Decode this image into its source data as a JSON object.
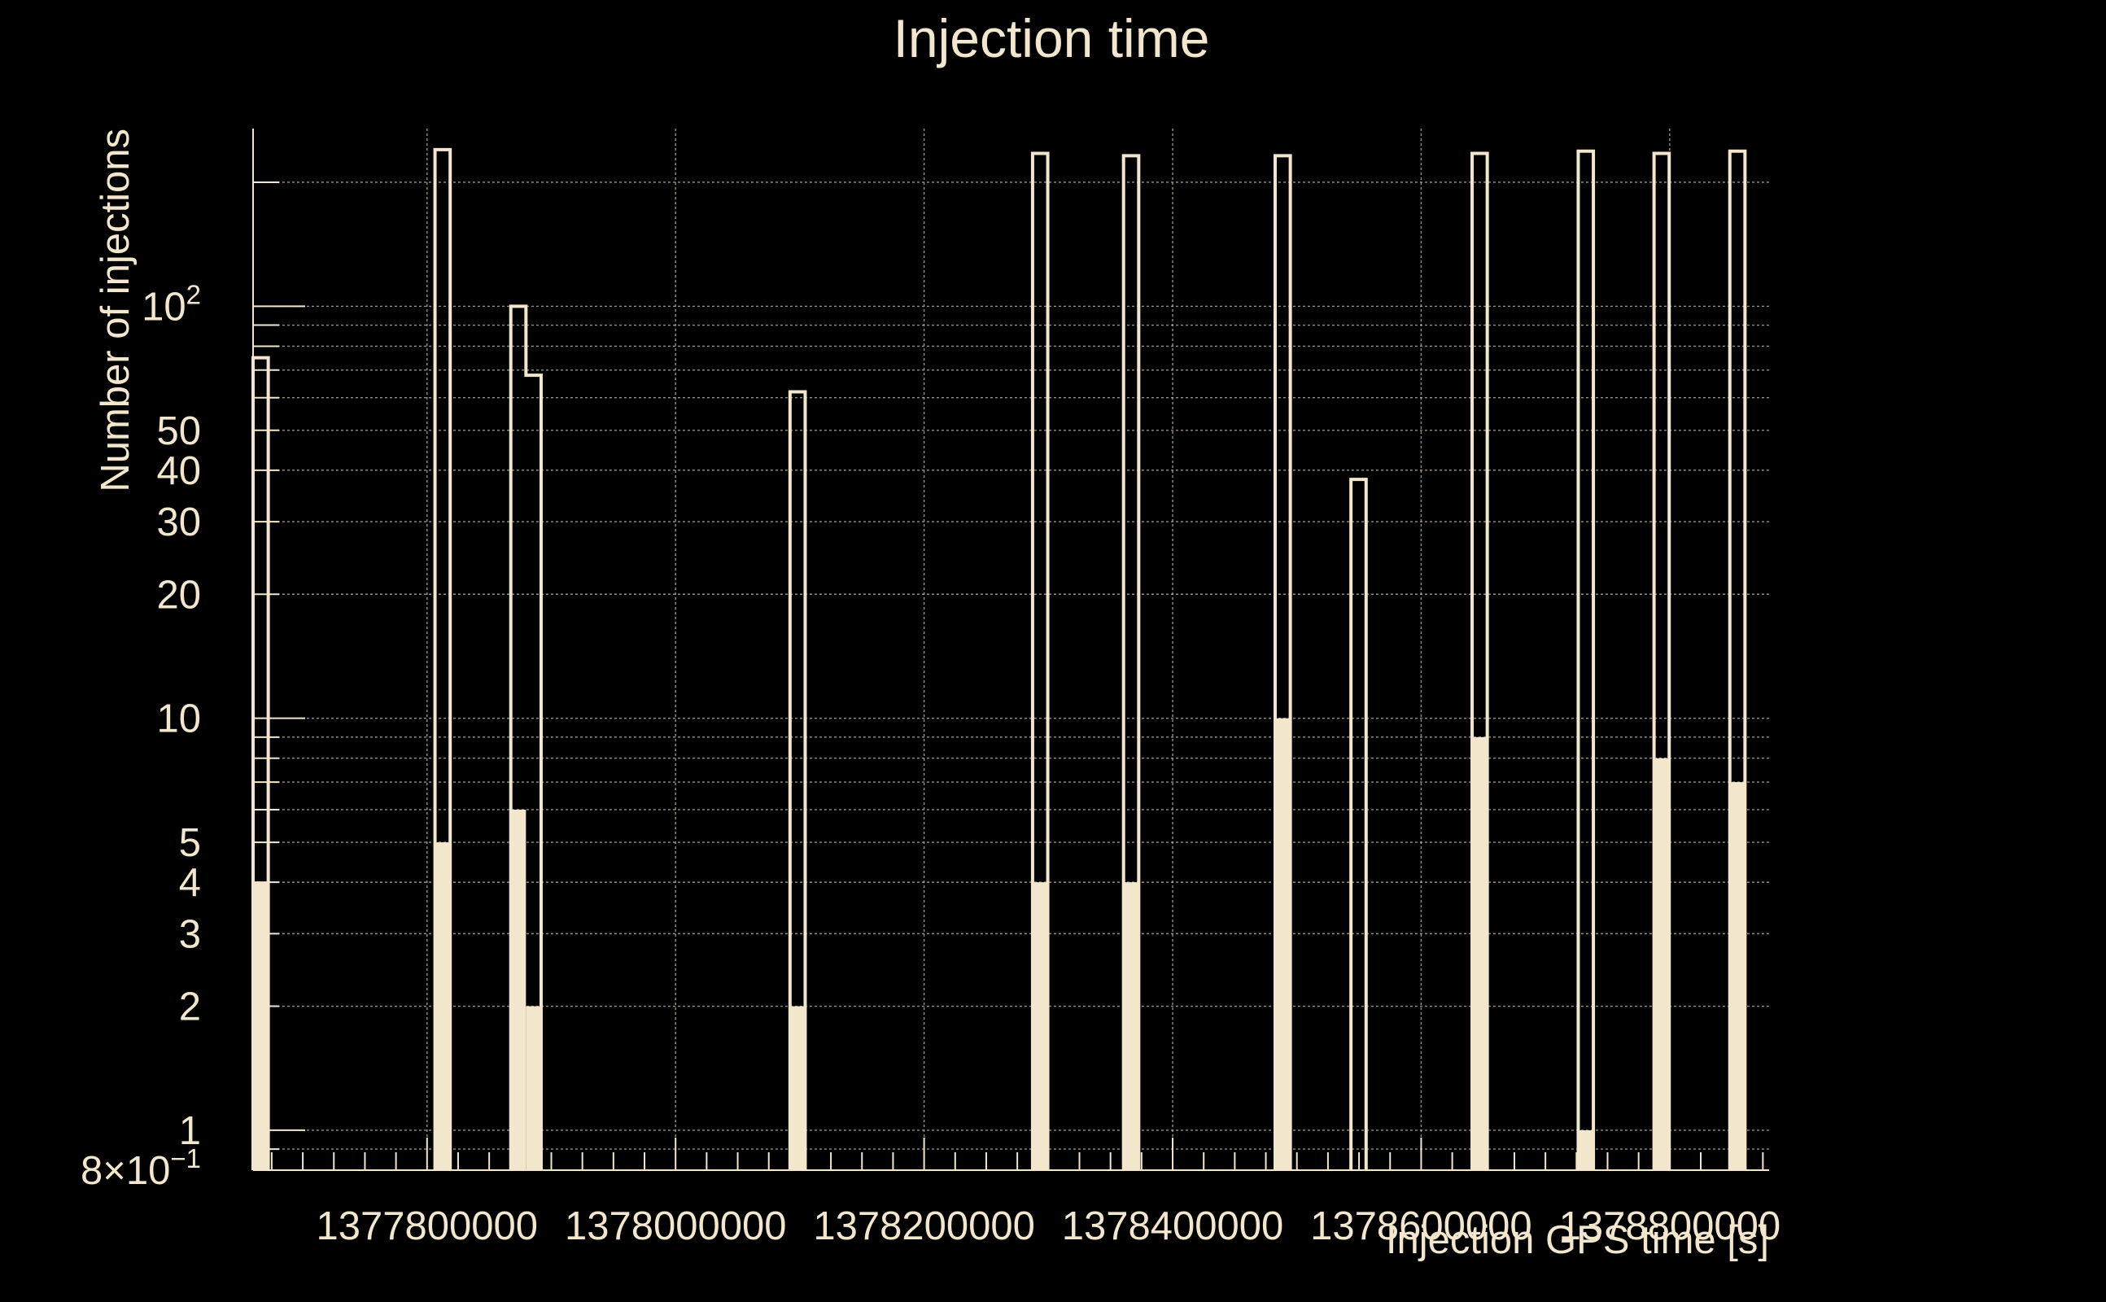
{
  "chart_data": {
    "type": "bar",
    "title": "Injection time",
    "xlabel": "Injection GPS time [s]",
    "ylabel": "Number of injections",
    "y_scale": "log",
    "ylim": [
      0.8,
      270
    ],
    "xlim": [
      1377660000,
      1378880000
    ],
    "grid": true,
    "x_tick_labels": [
      "1377800000",
      "1378000000",
      "1378200000",
      "1378400000",
      "1378600000",
      "1378800000"
    ],
    "x_ticks": [
      1377800000,
      1378000000,
      1378200000,
      1378400000,
      1378600000,
      1378800000
    ],
    "y_tick_labels": [
      {
        "value": 100,
        "base": "10",
        "exp": "2"
      },
      {
        "value": 50,
        "text": "50"
      },
      {
        "value": 40,
        "text": "40"
      },
      {
        "value": 30,
        "text": "30"
      },
      {
        "value": 20,
        "text": "20"
      },
      {
        "value": 10,
        "text": "10"
      },
      {
        "value": 5,
        "text": "5"
      },
      {
        "value": 4,
        "text": "4"
      },
      {
        "value": 3,
        "text": "3"
      },
      {
        "value": 2,
        "text": "2"
      },
      {
        "value": 1,
        "text": "1"
      },
      {
        "value": 0.8,
        "base": "8×10",
        "exp": "−1"
      }
    ],
    "bin_width": 12200,
    "series": [
      {
        "name": "",
        "style": "outline",
        "bins": [
          {
            "x_start": 1377660000,
            "x_end": 1377672200,
            "value": 75
          },
          {
            "x_start": 1377806400,
            "x_end": 1377818600,
            "value": 240
          },
          {
            "x_start": 1377867400,
            "x_end": 1377879600,
            "value": 100
          },
          {
            "x_start": 1377879600,
            "x_end": 1377891800,
            "value": 68
          },
          {
            "x_start": 1378092100,
            "x_end": 1378104300,
            "value": 62
          },
          {
            "x_start": 1378287300,
            "x_end": 1378299500,
            "value": 235
          },
          {
            "x_start": 1378360500,
            "x_end": 1378372700,
            "value": 232
          },
          {
            "x_start": 1378482500,
            "x_end": 1378494700,
            "value": 232
          },
          {
            "x_start": 1378543500,
            "x_end": 1378555700,
            "value": 38
          },
          {
            "x_start": 1378641000,
            "x_end": 1378653200,
            "value": 235
          },
          {
            "x_start": 1378726400,
            "x_end": 1378738600,
            "value": 238
          },
          {
            "x_start": 1378787400,
            "x_end": 1378799600,
            "value": 235
          },
          {
            "x_start": 1378848400,
            "x_end": 1378860600,
            "value": 238
          }
        ]
      },
      {
        "name": "",
        "style": "filled",
        "bins": [
          {
            "x_start": 1377660000,
            "x_end": 1377672200,
            "value": 4
          },
          {
            "x_start": 1377806400,
            "x_end": 1377818600,
            "value": 5
          },
          {
            "x_start": 1377867400,
            "x_end": 1377879600,
            "value": 6
          },
          {
            "x_start": 1377879600,
            "x_end": 1377891800,
            "value": 2
          },
          {
            "x_start": 1378092100,
            "x_end": 1378104300,
            "value": 2
          },
          {
            "x_start": 1378287300,
            "x_end": 1378299500,
            "value": 4
          },
          {
            "x_start": 1378360500,
            "x_end": 1378372700,
            "value": 4
          },
          {
            "x_start": 1378482500,
            "x_end": 1378494700,
            "value": 10
          },
          {
            "x_start": 1378641000,
            "x_end": 1378653200,
            "value": 9
          },
          {
            "x_start": 1378726400,
            "x_end": 1378738600,
            "value": 1
          },
          {
            "x_start": 1378787400,
            "x_end": 1378799600,
            "value": 8
          },
          {
            "x_start": 1378848400,
            "x_end": 1378860600,
            "value": 7
          }
        ]
      }
    ]
  },
  "colors": {
    "background": "#000000",
    "foreground": "#f2e6cc",
    "grid": "#c9c0ae"
  }
}
